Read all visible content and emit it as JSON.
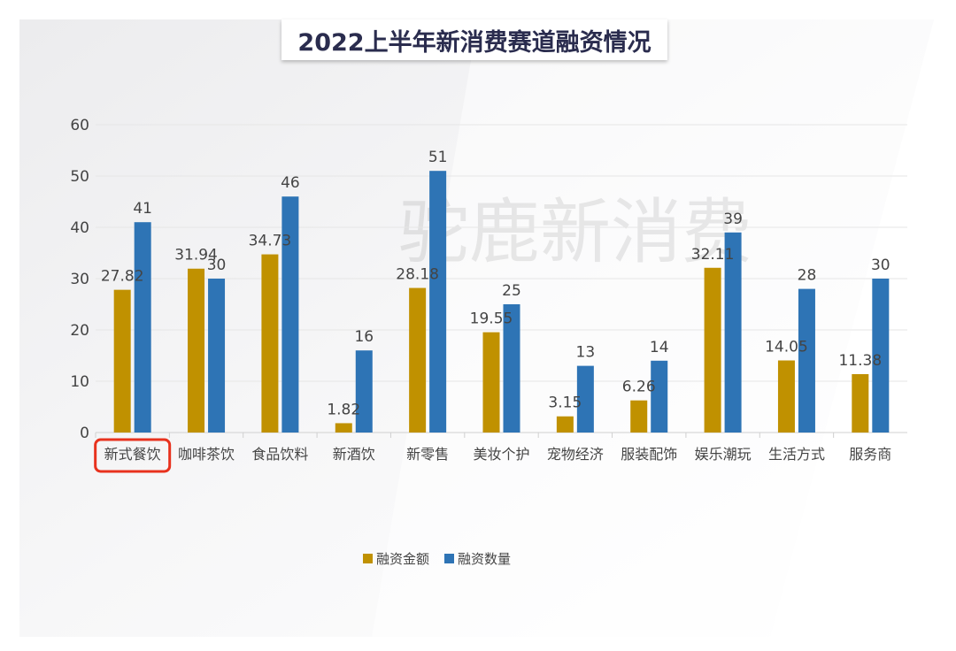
{
  "chart_data": {
    "type": "bar",
    "title": "2022上半年新消费赛道融资情况",
    "categories": [
      "新式餐饮",
      "咖啡茶饮",
      "食品饮料",
      "新酒饮",
      "新零售",
      "美妆个护",
      "宠物经济",
      "服装配饰",
      "娱乐潮玩",
      "生活方式",
      "服务商"
    ],
    "series": [
      {
        "name": "融资金额",
        "color": "#c09100",
        "values": [
          27.82,
          31.94,
          34.73,
          1.82,
          28.18,
          19.55,
          3.15,
          6.26,
          32.11,
          14.05,
          11.38
        ]
      },
      {
        "name": "融资数量",
        "color": "#2e74b5",
        "values": [
          41,
          30,
          46,
          16,
          51,
          25,
          13,
          14,
          39,
          28,
          30
        ]
      }
    ],
    "ylim": [
      0,
      60
    ],
    "yticks": [
      0,
      10,
      20,
      30,
      40,
      50,
      60
    ],
    "grid": true,
    "legend": "bottom",
    "highlighted_category": "新式餐饮",
    "highlight_color": "#e8321e",
    "watermark": "驼鹿新消费"
  }
}
